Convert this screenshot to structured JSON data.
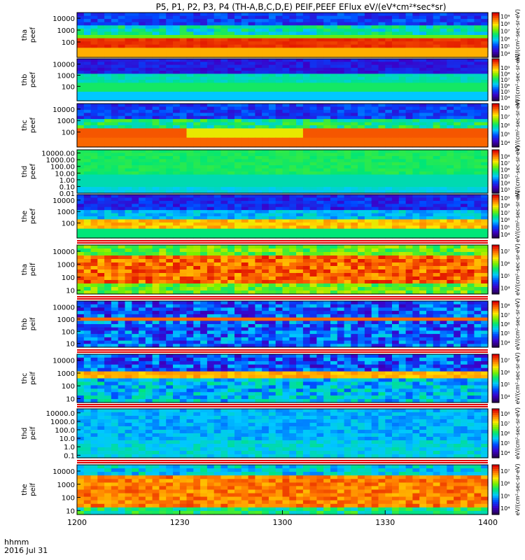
{
  "title": "P5, P1, P2, P3, P4 (TH-A,B,C,D,E) PEIF,PEEF EFlux eV/(eV*cm²*sec*sr)",
  "footer": {
    "time_label": "hhmm",
    "date_label": "2016 Jul 31"
  },
  "chart_data": {
    "type": "heatmap",
    "x_range": [
      "1200",
      "1400"
    ],
    "x_ticks": [
      "1200",
      "1230",
      "1300",
      "1330",
      "1400"
    ],
    "panels": [
      {
        "id": "tha-peef",
        "ylabel": "tha\npeef",
        "y_range": [
          5,
          30000
        ],
        "ticks": [
          "10000",
          "1000",
          "100"
        ],
        "colorbar_ticks": [
          "10⁹",
          "10⁸",
          "10⁷",
          "10⁶",
          "10⁵",
          "10⁴"
        ],
        "colorbar_range": [
          3.5,
          9.5
        ],
        "colorbar_label": "eV/(cm²-sec-sr-eV)"
      },
      {
        "id": "thb-peef",
        "ylabel": "thb\npeef",
        "y_range": [
          5,
          30000
        ],
        "ticks": [
          "10000",
          "1000",
          "100"
        ],
        "colorbar_ticks": [
          "10⁹",
          "10⁸",
          "10⁷",
          "10⁶",
          "10⁵",
          "10⁴"
        ],
        "colorbar_range": [
          3.5,
          10.5
        ],
        "colorbar_label": "eV/(cm²-sec-sr-eV)"
      },
      {
        "id": "thc-peef",
        "ylabel": "thc\npeef",
        "y_range": [
          5,
          30000
        ],
        "ticks": [
          "10000",
          "1000",
          "100"
        ],
        "colorbar_ticks": [
          "10⁸",
          "10⁷",
          "10⁶",
          "10⁵",
          "10⁴"
        ],
        "colorbar_range": [
          3.5,
          8.5
        ],
        "colorbar_label": "eV/(cm²-sec-sr-eV)"
      },
      {
        "id": "thd-peef",
        "ylabel": "thd\npeef",
        "y_range": [
          0.01,
          30000
        ],
        "ticks": [
          "10000.00",
          "1000.00",
          "100.00",
          "10.00",
          "1.00",
          "0.10",
          "0.01"
        ],
        "colorbar_ticks": [
          "10⁸",
          "10⁷",
          "10⁶",
          "10⁵",
          "10⁴",
          "10³"
        ],
        "colorbar_range": [
          2.5,
          9
        ],
        "colorbar_label": "eV/(cm²-sec-sr-eV)"
      },
      {
        "id": "the-peef",
        "ylabel": "the\npeef",
        "y_range": [
          5,
          30000
        ],
        "ticks": [
          "10000",
          "1000",
          "100"
        ],
        "colorbar_ticks": [
          "10⁹",
          "10⁸",
          "10⁷",
          "10⁶",
          "10⁵",
          "10⁴"
        ],
        "colorbar_range": [
          3.5,
          9.5
        ],
        "colorbar_label": "eV/(cm²-sec-sr-eV)"
      },
      {
        "id": "tha-peif",
        "ylabel": "tha\npeif",
        "y_range": [
          5,
          30000
        ],
        "ticks": [
          "10000",
          "1000",
          "100",
          "10"
        ],
        "colorbar_ticks": [
          "10⁷",
          "10⁶",
          "10⁵",
          "10⁴"
        ],
        "colorbar_range": [
          3.5,
          7.5
        ],
        "colorbar_label": "eV/(cm²-sec-sr-eV)"
      },
      {
        "id": "thb-peif",
        "ylabel": "thb\npeif",
        "y_range": [
          5,
          30000
        ],
        "ticks": [
          "10000",
          "1000",
          "100",
          "10"
        ],
        "colorbar_ticks": [
          "10⁸",
          "10⁷",
          "10⁶",
          "10⁵",
          "10⁴"
        ],
        "colorbar_range": [
          3.5,
          8.5
        ],
        "colorbar_label": "eV/(cm²-sec-sr-eV)"
      },
      {
        "id": "thc-peif",
        "ylabel": "thc\npeif",
        "y_range": [
          5,
          30000
        ],
        "ticks": [
          "10000",
          "1000",
          "100",
          "10"
        ],
        "colorbar_ticks": [
          "10⁷",
          "10⁶",
          "10⁵",
          "10⁴"
        ],
        "colorbar_range": [
          3.5,
          7.5
        ],
        "colorbar_label": "eV/(cm²-sec-sr-eV)"
      },
      {
        "id": "thd-peif",
        "ylabel": "thd\npeif",
        "y_range": [
          0.05,
          30000
        ],
        "ticks": [
          "10000.0",
          "1000.0",
          "100.0",
          "10.0",
          "1.0",
          "0.1"
        ],
        "colorbar_ticks": [
          "10⁸",
          "10⁷",
          "10⁶",
          "10⁵",
          "10⁴"
        ],
        "colorbar_range": [
          3.5,
          8.5
        ],
        "colorbar_label": "eV/(cm²-sec-sr-eV)"
      },
      {
        "id": "the-peif",
        "ylabel": "the\npeif",
        "y_range": [
          5,
          30000
        ],
        "ticks": [
          "10000",
          "1000",
          "100",
          "10"
        ],
        "colorbar_ticks": [
          "10⁷",
          "10⁶",
          "10⁵",
          "10⁴"
        ],
        "colorbar_range": [
          3.5,
          7.5
        ],
        "colorbar_label": "eV/(cm²-sec-sr-eV)"
      }
    ],
    "colorbar_full_label": "[eV/(cm^2-sec-sr-eV)]"
  }
}
